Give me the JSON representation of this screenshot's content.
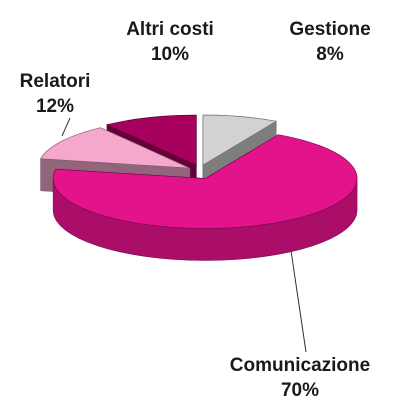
{
  "chart_data": {
    "type": "pie3d",
    "categories": [
      "Gestione",
      "Comunicazione",
      "Relatori",
      "Altri costi"
    ],
    "values": [
      8,
      70,
      12,
      10
    ],
    "value_labels": [
      "8%",
      "70%",
      "12%",
      "10%"
    ],
    "colors": [
      "#d2d2d2",
      "#e3138c",
      "#f4a8cc",
      "#a8005f"
    ]
  }
}
